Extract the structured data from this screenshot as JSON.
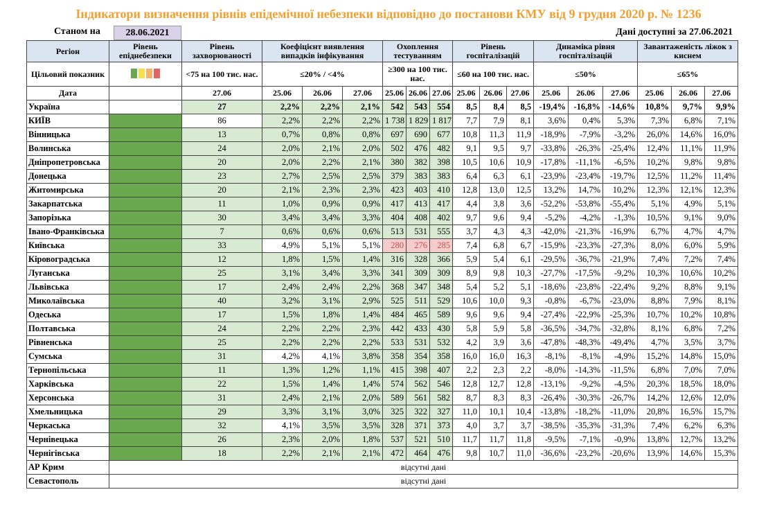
{
  "header": {
    "title": "Індикатори визначення рівнів епідемічної небезпеки відповідно до постанови КМУ від 9 грудня 2020 р. № 1236",
    "as_of_label": "Станом на",
    "as_of_date": "28.06.2021",
    "available": "Дані доступні за 27.06.2021"
  },
  "table": {
    "columns": [
      "Регіон",
      "Рівень епіднебезпеки",
      "Рівень захворюваності",
      "Коефіцієнт виявлення випадків інфікування",
      "Охоплення тестуванням",
      "Рівень госпіталізацій",
      "Динаміка рівня госпіталізацій",
      "Завантаженість ліжок з киснем"
    ],
    "target": {
      "label": "Цільовий показник",
      "values": [
        "<75 на 100 тис. нас.",
        "≤20% / <4%",
        "≥300 на 100 тис. нас.",
        "≤60 на 100 тис. нас.",
        "≤50%",
        "≤65%"
      ]
    },
    "dates": {
      "label": "Дата",
      "incidence": "27.06",
      "days": [
        "25.06",
        "26.06",
        "27.06"
      ]
    },
    "rows": [
      {
        "region": "Україна",
        "incidence": "27",
        "coef": [
          "2,2%",
          "2,2%",
          "2,1%"
        ],
        "testing": [
          "542",
          "543",
          "554"
        ],
        "hosp": [
          "8,5",
          "8,4",
          "8,5"
        ],
        "dynamics": [
          "-19,4%",
          "-16,8%",
          "-14,6%"
        ],
        "oxygen": [
          "10,8%",
          "9,7%",
          "9,9%"
        ]
      },
      {
        "region": "КИЇВ",
        "incidence": "86",
        "coef": [
          "2,2%",
          "2,2%",
          "2,2%"
        ],
        "testing": [
          "1 738",
          "1 829",
          "1 817"
        ],
        "hosp": [
          "7,7",
          "7,9",
          "8,1"
        ],
        "dynamics": [
          "3,6%",
          "0,4%",
          "5,3%"
        ],
        "oxygen": [
          "7,3%",
          "6,8%",
          "7,1%"
        ]
      },
      {
        "region": "Вінницька",
        "incidence": "13",
        "coef": [
          "0,7%",
          "0,8%",
          "0,8%"
        ],
        "testing": [
          "697",
          "690",
          "677"
        ],
        "hosp": [
          "10,8",
          "11,3",
          "11,9"
        ],
        "dynamics": [
          "-18,9%",
          "-7,9%",
          "-3,2%"
        ],
        "oxygen": [
          "26,0%",
          "14,6%",
          "16,0%"
        ]
      },
      {
        "region": "Волинська",
        "incidence": "24",
        "coef": [
          "2,0%",
          "2,1%",
          "2,0%"
        ],
        "testing": [
          "502",
          "476",
          "482"
        ],
        "hosp": [
          "9,1",
          "9,5",
          "9,7"
        ],
        "dynamics": [
          "-33,8%",
          "-26,3%",
          "-25,4%"
        ],
        "oxygen": [
          "12,4%",
          "11,1%",
          "11,9%"
        ]
      },
      {
        "region": "Дніпропетровська",
        "incidence": "20",
        "coef": [
          "2,0%",
          "2,2%",
          "2,1%"
        ],
        "testing": [
          "380",
          "382",
          "398"
        ],
        "hosp": [
          "10,5",
          "10,6",
          "10,9"
        ],
        "dynamics": [
          "-17,8%",
          "-11,1%",
          "-6,5%"
        ],
        "oxygen": [
          "10,2%",
          "9,8%",
          "9,8%"
        ]
      },
      {
        "region": "Донецька",
        "incidence": "23",
        "coef": [
          "2,7%",
          "2,5%",
          "2,5%"
        ],
        "testing": [
          "379",
          "383",
          "383"
        ],
        "hosp": [
          "6,4",
          "6,3",
          "6,1"
        ],
        "dynamics": [
          "-23,9%",
          "-23,4%",
          "-19,7%"
        ],
        "oxygen": [
          "12,5%",
          "11,2%",
          "11,4%"
        ]
      },
      {
        "region": "Житомирська",
        "incidence": "20",
        "coef": [
          "2,1%",
          "2,3%",
          "2,3%"
        ],
        "testing": [
          "423",
          "403",
          "410"
        ],
        "hosp": [
          "12,8",
          "13,0",
          "12,5"
        ],
        "dynamics": [
          "13,2%",
          "14,7%",
          "10,2%"
        ],
        "oxygen": [
          "12,3%",
          "12,1%",
          "12,3%"
        ]
      },
      {
        "region": "Закарпатська",
        "incidence": "11",
        "coef": [
          "1,0%",
          "0,9%",
          "0,9%"
        ],
        "testing": [
          "417",
          "413",
          "417"
        ],
        "hosp": [
          "4,4",
          "3,8",
          "3,6"
        ],
        "dynamics": [
          "-52,2%",
          "-53,8%",
          "-55,4%"
        ],
        "oxygen": [
          "5,1%",
          "4,9%",
          "5,1%"
        ]
      },
      {
        "region": "Запорізька",
        "incidence": "30",
        "coef": [
          "3,4%",
          "3,4%",
          "3,3%"
        ],
        "testing": [
          "404",
          "408",
          "402"
        ],
        "hosp": [
          "9,7",
          "9,6",
          "9,4"
        ],
        "dynamics": [
          "-5,2%",
          "-4,2%",
          "-1,3%"
        ],
        "oxygen": [
          "10,5%",
          "9,1%",
          "9,0%"
        ]
      },
      {
        "region": "Івано-Франківська",
        "incidence": "7",
        "coef": [
          "0,6%",
          "0,6%",
          "0,6%"
        ],
        "testing": [
          "513",
          "531",
          "555"
        ],
        "hosp": [
          "3,7",
          "4,3",
          "4,3"
        ],
        "dynamics": [
          "-42,0%",
          "-21,3%",
          "-16,9%"
        ],
        "oxygen": [
          "6,7%",
          "4,7%",
          "4,7%"
        ]
      },
      {
        "region": "Київська",
        "incidence": "33",
        "coef": [
          "4,9%",
          "5,1%",
          "5,1%"
        ],
        "testing": [
          "280",
          "276",
          "285"
        ],
        "hosp": [
          "7,4",
          "6,8",
          "6,7"
        ],
        "dynamics": [
          "-15,9%",
          "-23,3%",
          "-27,3%"
        ],
        "oxygen": [
          "8,0%",
          "6,0%",
          "5,9%"
        ]
      },
      {
        "region": "Кіровоградська",
        "incidence": "12",
        "coef": [
          "1,8%",
          "1,5%",
          "1,4%"
        ],
        "testing": [
          "316",
          "328",
          "366"
        ],
        "hosp": [
          "5,9",
          "5,4",
          "6,1"
        ],
        "dynamics": [
          "-29,5%",
          "-36,7%",
          "-21,9%"
        ],
        "oxygen": [
          "7,4%",
          "7,2%",
          "7,4%"
        ]
      },
      {
        "region": "Луганська",
        "incidence": "25",
        "coef": [
          "3,1%",
          "3,4%",
          "3,3%"
        ],
        "testing": [
          "341",
          "309",
          "309"
        ],
        "hosp": [
          "8,9",
          "9,8",
          "10,3"
        ],
        "dynamics": [
          "-27,7%",
          "-17,5%",
          "-9,2%"
        ],
        "oxygen": [
          "10,3%",
          "10,6%",
          "10,2%"
        ]
      },
      {
        "region": "Львівська",
        "incidence": "17",
        "coef": [
          "2,4%",
          "2,4%",
          "2,2%"
        ],
        "testing": [
          "368",
          "347",
          "348"
        ],
        "hosp": [
          "5,4",
          "5,2",
          "5,1"
        ],
        "dynamics": [
          "-18,6%",
          "-23,8%",
          "-22,4%"
        ],
        "oxygen": [
          "9,2%",
          "8,8%",
          "9,1%"
        ]
      },
      {
        "region": "Миколаївська",
        "incidence": "40",
        "coef": [
          "3,2%",
          "3,1%",
          "2,9%"
        ],
        "testing": [
          "525",
          "511",
          "529"
        ],
        "hosp": [
          "10,6",
          "10,0",
          "9,3"
        ],
        "dynamics": [
          "-0,8%",
          "-6,7%",
          "-23,0%"
        ],
        "oxygen": [
          "8,8%",
          "7,9%",
          "8,1%"
        ]
      },
      {
        "region": "Одеська",
        "incidence": "17",
        "coef": [
          "1,5%",
          "1,8%",
          "1,4%"
        ],
        "testing": [
          "484",
          "465",
          "589"
        ],
        "hosp": [
          "9,6",
          "9,6",
          "9,4"
        ],
        "dynamics": [
          "-27,4%",
          "-22,9%",
          "-25,3%"
        ],
        "oxygen": [
          "10,7%",
          "10,2%",
          "10,8%"
        ]
      },
      {
        "region": "Полтавська",
        "incidence": "24",
        "coef": [
          "2,2%",
          "2,2%",
          "2,3%"
        ],
        "testing": [
          "442",
          "433",
          "430"
        ],
        "hosp": [
          "5,8",
          "5,9",
          "5,8"
        ],
        "dynamics": [
          "-36,5%",
          "-34,7%",
          "-32,8%"
        ],
        "oxygen": [
          "8,1%",
          "6,8%",
          "7,2%"
        ]
      },
      {
        "region": "Рівненська",
        "incidence": "25",
        "coef": [
          "2,2%",
          "2,2%",
          "2,2%"
        ],
        "testing": [
          "533",
          "531",
          "532"
        ],
        "hosp": [
          "4,2",
          "3,9",
          "3,6"
        ],
        "dynamics": [
          "-47,8%",
          "-48,3%",
          "-49,4%"
        ],
        "oxygen": [
          "4,7%",
          "3,5%",
          "3,7%"
        ]
      },
      {
        "region": "Сумська",
        "incidence": "31",
        "coef": [
          "4,2%",
          "4,1%",
          "3,8%"
        ],
        "testing": [
          "358",
          "354",
          "358"
        ],
        "hosp": [
          "16,0",
          "16,0",
          "16,3"
        ],
        "dynamics": [
          "-8,1%",
          "-8,1%",
          "-4,9%"
        ],
        "oxygen": [
          "15,2%",
          "14,8%",
          "15,0%"
        ]
      },
      {
        "region": "Тернопільська",
        "incidence": "11",
        "coef": [
          "1,3%",
          "1,2%",
          "1,1%"
        ],
        "testing": [
          "415",
          "398",
          "407"
        ],
        "hosp": [
          "2,2",
          "2,3",
          "2,2"
        ],
        "dynamics": [
          "-8,0%",
          "-14,3%",
          "-11,5%"
        ],
        "oxygen": [
          "6,8%",
          "7,0%",
          "7,0%"
        ]
      },
      {
        "region": "Харківська",
        "incidence": "22",
        "coef": [
          "1,5%",
          "1,4%",
          "1,4%"
        ],
        "testing": [
          "574",
          "562",
          "546"
        ],
        "hosp": [
          "12,8",
          "12,7",
          "12,8"
        ],
        "dynamics": [
          "-13,1%",
          "-9,2%",
          "-4,5%"
        ],
        "oxygen": [
          "20,3%",
          "18,5%",
          "18,0%"
        ]
      },
      {
        "region": "Херсонська",
        "incidence": "31",
        "coef": [
          "2,4%",
          "2,1%",
          "2,0%"
        ],
        "testing": [
          "589",
          "561",
          "582"
        ],
        "hosp": [
          "8,7",
          "8,3",
          "8,3"
        ],
        "dynamics": [
          "-26,4%",
          "-30,3%",
          "-26,7%"
        ],
        "oxygen": [
          "14,2%",
          "12,6%",
          "12,0%"
        ]
      },
      {
        "region": "Хмельницька",
        "incidence": "29",
        "coef": [
          "3,3%",
          "3,1%",
          "3,0%"
        ],
        "testing": [
          "325",
          "322",
          "327"
        ],
        "hosp": [
          "11,0",
          "10,1",
          "10,4"
        ],
        "dynamics": [
          "-13,8%",
          "-18,2%",
          "-11,0%"
        ],
        "oxygen": [
          "20,8%",
          "16,5%",
          "15,7%"
        ]
      },
      {
        "region": "Черкаська",
        "incidence": "32",
        "coef": [
          "4,1%",
          "3,5%",
          "3,5%"
        ],
        "testing": [
          "328",
          "371",
          "373"
        ],
        "hosp": [
          "4,0",
          "3,7",
          "3,7"
        ],
        "dynamics": [
          "-38,5%",
          "-35,3%",
          "-31,3%"
        ],
        "oxygen": [
          "7,4%",
          "6,2%",
          "6,3%"
        ]
      },
      {
        "region": "Чернівецька",
        "incidence": "26",
        "coef": [
          "2,3%",
          "2,0%",
          "1,8%"
        ],
        "testing": [
          "537",
          "521",
          "510"
        ],
        "hosp": [
          "11,7",
          "11,7",
          "11,8"
        ],
        "dynamics": [
          "-9,5%",
          "-7,1%",
          "-0,9%"
        ],
        "oxygen": [
          "13,8%",
          "12,7%",
          "13,2%"
        ]
      },
      {
        "region": "Чернігівська",
        "incidence": "18",
        "coef": [
          "2,2%",
          "2,1%",
          "2,1%"
        ],
        "testing": [
          "472",
          "464",
          "476"
        ],
        "hosp": [
          "9,8",
          "10,7",
          "11,0"
        ],
        "dynamics": [
          "-36,6%",
          "-23,2%",
          "-20,6%"
        ],
        "oxygen": [
          "13,9%",
          "14,6%",
          "15,3%"
        ]
      }
    ],
    "missing": [
      {
        "region": "АР Крим",
        "note": "відсутні дані"
      },
      {
        "region": "Севастополь",
        "note": "відсутні дані"
      }
    ]
  }
}
